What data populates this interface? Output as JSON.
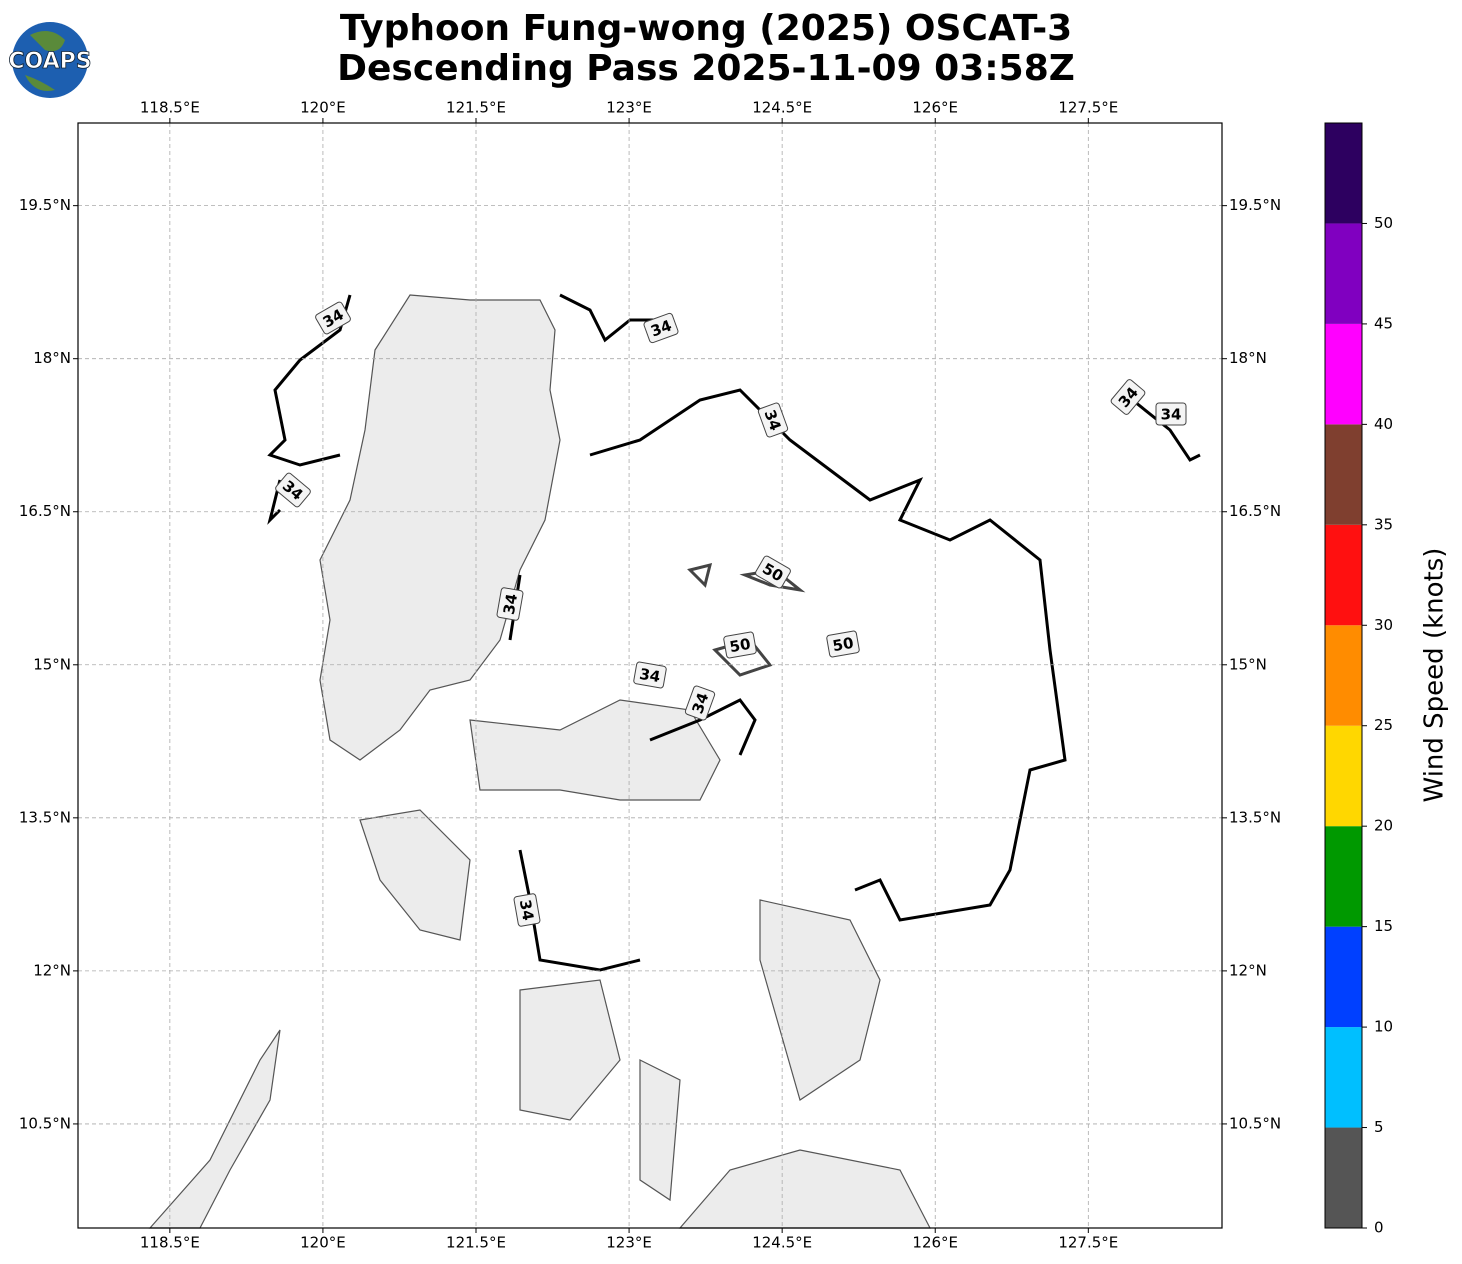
{
  "title": [
    "Typhoon Fung-wong (2025) OSCAT-3",
    "Descending Pass 2025-11-09 03:58Z"
  ],
  "logo": "COAPS",
  "map": {
    "lon_range": [
      117.6,
      128.81
    ],
    "lat_range": [
      9.48,
      20.31
    ],
    "lon_ticks": [
      {
        "value": 118.5,
        "label": "118.5°E"
      },
      {
        "value": 120,
        "label": "120°E"
      },
      {
        "value": 121.5,
        "label": "121.5°E"
      },
      {
        "value": 123,
        "label": "123°E"
      },
      {
        "value": 124.5,
        "label": "124.5°E"
      },
      {
        "value": 126,
        "label": "126°E"
      },
      {
        "value": 127.5,
        "label": "127.5°E"
      }
    ],
    "lat_ticks": [
      {
        "value": 19.5,
        "label": "19.5°N"
      },
      {
        "value": 18,
        "label": "18°N"
      },
      {
        "value": 16.5,
        "label": "16.5°N"
      },
      {
        "value": 15,
        "label": "15°N"
      },
      {
        "value": 13.5,
        "label": "13.5°N"
      },
      {
        "value": 12,
        "label": "12°N"
      },
      {
        "value": 10.5,
        "label": "10.5°N"
      }
    ],
    "grid": true,
    "contour_labels": [
      "34",
      "34",
      "34",
      "34",
      "34",
      "34",
      "34",
      "34",
      "34",
      "34",
      "50",
      "50",
      "50"
    ]
  },
  "colorbar": {
    "label": "Wind Speed (knots)",
    "bounds": [
      0,
      5,
      10,
      15,
      20,
      25,
      30,
      35,
      40,
      45,
      50,
      55
    ],
    "colors": [
      "#555555",
      "#00bfff",
      "#0040ff",
      "#009900",
      "#ffd700",
      "#ff8c00",
      "#ff1010",
      "#7f3f2f",
      "#ff00ff",
      "#8000c0",
      "#2d0060"
    ],
    "ticks": [
      0,
      5,
      10,
      15,
      20,
      25,
      30,
      35,
      40,
      45,
      50
    ]
  }
}
